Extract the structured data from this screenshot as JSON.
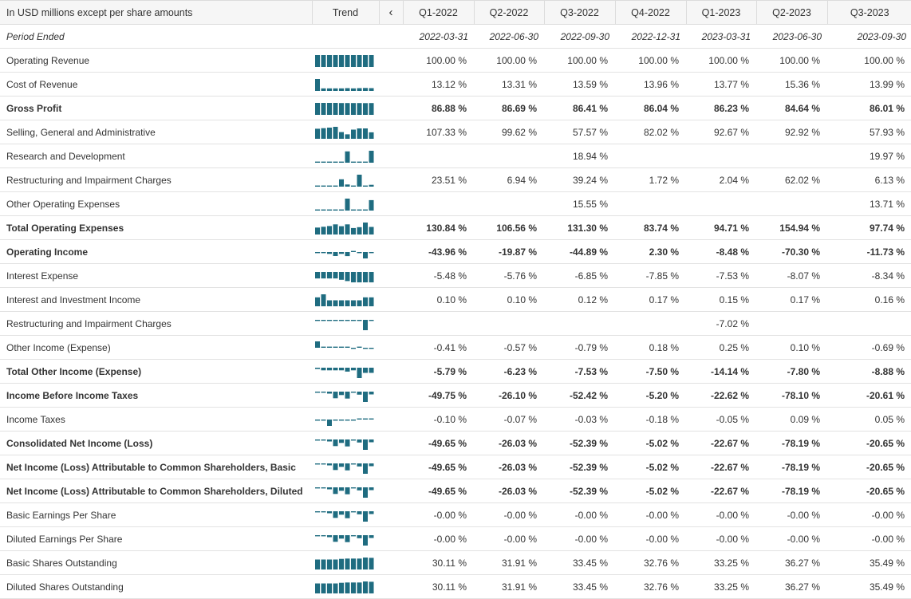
{
  "header": {
    "units_label": "In USD millions except per share amounts",
    "trend_label": "Trend",
    "nav_prev_label": "‹",
    "periods": [
      "Q1-2022",
      "Q2-2022",
      "Q3-2022",
      "Q4-2022",
      "Q1-2023",
      "Q2-2023",
      "Q3-2023"
    ]
  },
  "period_ended": {
    "label": "Period Ended",
    "dates": [
      "2022-03-31",
      "2022-06-30",
      "2022-09-30",
      "2022-12-31",
      "2023-03-31",
      "2023-06-30",
      "2023-09-30"
    ]
  },
  "colors": {
    "sparkline": "#1f6c80",
    "header_bg": "#f6f6f6",
    "row_border": "#e2e2e2"
  },
  "rows": [
    {
      "label": "Operating Revenue",
      "bold": false,
      "values": [
        "100.00 %",
        "100.00 %",
        "100.00 %",
        "100.00 %",
        "100.00 %",
        "100.00 %",
        "100.00 %"
      ],
      "trend": [
        100,
        100,
        100,
        100,
        100,
        100,
        100,
        100,
        100,
        100
      ]
    },
    {
      "label": "Cost of Revenue",
      "bold": false,
      "values": [
        "13.12 %",
        "13.31 %",
        "13.59 %",
        "13.96 %",
        "13.77 %",
        "15.36 %",
        "13.99 %"
      ],
      "trend": [
        60,
        13,
        13,
        13,
        13,
        14,
        13,
        14,
        15,
        14
      ]
    },
    {
      "label": "Gross Profit",
      "bold": true,
      "values": [
        "86.88 %",
        "86.69 %",
        "86.41 %",
        "86.04 %",
        "86.23 %",
        "84.64 %",
        "86.01 %"
      ],
      "trend": [
        87,
        87,
        87,
        87,
        86,
        86,
        86,
        86,
        85,
        86
      ]
    },
    {
      "label": "Selling, General and Administrative",
      "bold": false,
      "values": [
        "107.33 %",
        "99.62 %",
        "57.57 %",
        "82.02 %",
        "92.67 %",
        "92.92 %",
        "57.93 %"
      ],
      "trend": [
        90,
        95,
        100,
        107,
        60,
        40,
        82,
        93,
        93,
        58
      ]
    },
    {
      "label": "Research and Development",
      "bold": false,
      "values": [
        "",
        "",
        "18.94 %",
        "",
        "",
        "",
        "19.97 %"
      ],
      "trend": [
        0,
        0,
        0,
        0,
        0,
        19,
        0,
        0,
        0,
        20
      ]
    },
    {
      "label": "Restructuring and Impairment Charges",
      "bold": false,
      "values": [
        "23.51 %",
        "6.94 %",
        "39.24 %",
        "1.72 %",
        "2.04 %",
        "62.02 %",
        "6.13 %"
      ],
      "trend": [
        0,
        0,
        0,
        0,
        24,
        7,
        0,
        39,
        2,
        6
      ]
    },
    {
      "label": "Other Operating Expenses",
      "bold": false,
      "values": [
        "",
        "",
        "15.55 %",
        "",
        "",
        "",
        "13.71 %"
      ],
      "trend": [
        0,
        0,
        0,
        0,
        0,
        16,
        0,
        0,
        0,
        14
      ]
    },
    {
      "label": "Total Operating Expenses",
      "bold": true,
      "values": [
        "130.84 %",
        "106.56 %",
        "131.30 %",
        "83.74 %",
        "94.71 %",
        "154.94 %",
        "97.74 %"
      ],
      "trend": [
        90,
        100,
        110,
        131,
        107,
        131,
        84,
        95,
        155,
        98
      ]
    },
    {
      "label": "Operating Income",
      "bold": true,
      "values": [
        "-43.96 %",
        "-19.87 %",
        "-44.89 %",
        "2.30 %",
        "-8.48 %",
        "-70.30 %",
        "-11.73 %"
      ],
      "trend": [
        -3,
        -10,
        -20,
        -44,
        -20,
        -45,
        2,
        -8,
        -70,
        -12
      ]
    },
    {
      "label": "Interest Expense",
      "bold": false,
      "values": [
        "-5.48 %",
        "-5.76 %",
        "-6.85 %",
        "-7.85 %",
        "-7.53 %",
        "-8.07 %",
        "-8.34 %"
      ],
      "trend": [
        -5,
        -5,
        -5,
        -5,
        -6,
        -7,
        -8,
        -8,
        -8,
        -8
      ]
    },
    {
      "label": "Interest and Investment Income",
      "bold": false,
      "values": [
        "0.10 %",
        "0.10 %",
        "0.12 %",
        "0.17 %",
        "0.15 %",
        "0.17 %",
        "0.16 %"
      ],
      "trend": [
        0.3,
        0.4,
        0.2,
        0.2,
        0.2,
        0.2,
        0.2,
        0.2,
        0.3,
        0.3
      ]
    },
    {
      "label": "Restructuring and Impairment Charges",
      "bold": false,
      "values": [
        "",
        "",
        "",
        "",
        "-7.02 %",
        "",
        ""
      ],
      "trend": [
        0,
        0,
        0,
        0,
        0,
        0,
        0,
        0,
        -7,
        0
      ]
    },
    {
      "label": "Other Income (Expense)",
      "bold": false,
      "values": [
        "-0.41 %",
        "-0.57 %",
        "-0.79 %",
        "0.18 %",
        "0.25 %",
        "0.10 %",
        "-0.69 %"
      ],
      "trend": [
        3,
        0.1,
        0.1,
        0.1,
        0.1,
        0.1,
        -0.2,
        0.1,
        -0.2,
        -0.2
      ]
    },
    {
      "label": "Total Other Income (Expense)",
      "bold": true,
      "values": [
        "-5.79 %",
        "-6.23 %",
        "-7.53 %",
        "-7.50 %",
        "-14.14 %",
        "-7.80 %",
        "-8.88 %"
      ],
      "trend": [
        -1,
        -2,
        -2,
        -2,
        -2,
        -3,
        -2,
        -8,
        -4,
        -4
      ]
    },
    {
      "label": "Income Before Income Taxes",
      "bold": true,
      "values": [
        "-49.75 %",
        "-26.10 %",
        "-52.42 %",
        "-5.20 %",
        "-22.62 %",
        "-78.10 %",
        "-20.61 %"
      ],
      "trend": [
        -5,
        -8,
        -15,
        -50,
        -26,
        -52,
        -5,
        -23,
        -78,
        -21
      ]
    },
    {
      "label": "Income Taxes",
      "bold": false,
      "values": [
        "-0.10 %",
        "-0.07 %",
        "-0.03 %",
        "-0.18 %",
        "-0.05 %",
        "0.09 %",
        "0.05 %"
      ],
      "trend": [
        -0.02,
        -0.05,
        -0.3,
        -0.02,
        -0.02,
        -0.02,
        -0.05,
        0.02,
        0.02,
        0.02
      ]
    },
    {
      "label": "Consolidated Net Income (Loss)",
      "bold": true,
      "values": [
        "-49.65 %",
        "-26.03 %",
        "-52.39 %",
        "-5.02 %",
        "-22.67 %",
        "-78.19 %",
        "-20.65 %"
      ],
      "trend": [
        -5,
        -8,
        -15,
        -50,
        -26,
        -52,
        -5,
        -23,
        -78,
        -21
      ]
    },
    {
      "label": "Net Income (Loss) Attributable to Common Shareholders, Basic",
      "bold": true,
      "values": [
        "-49.65 %",
        "-26.03 %",
        "-52.39 %",
        "-5.02 %",
        "-22.67 %",
        "-78.19 %",
        "-20.65 %"
      ],
      "trend": [
        -5,
        -8,
        -15,
        -50,
        -26,
        -52,
        -5,
        -23,
        -78,
        -21
      ]
    },
    {
      "label": "Net Income (Loss) Attributable to Common Shareholders, Diluted",
      "bold": true,
      "values": [
        "-49.65 %",
        "-26.03 %",
        "-52.39 %",
        "-5.02 %",
        "-22.67 %",
        "-78.19 %",
        "-20.65 %"
      ],
      "trend": [
        -5,
        -8,
        -15,
        -50,
        -26,
        -52,
        -5,
        -23,
        -78,
        -21
      ]
    },
    {
      "label": "Basic Earnings Per Share",
      "bold": false,
      "values": [
        "-0.00 %",
        "-0.00 %",
        "-0.00 %",
        "-0.00 %",
        "-0.00 %",
        "-0.00 %",
        "-0.00 %"
      ],
      "trend": [
        -5,
        -8,
        -15,
        -50,
        -26,
        -52,
        -5,
        -23,
        -78,
        -21
      ]
    },
    {
      "label": "Diluted Earnings Per Share",
      "bold": false,
      "values": [
        "-0.00 %",
        "-0.00 %",
        "-0.00 %",
        "-0.00 %",
        "-0.00 %",
        "-0.00 %",
        "-0.00 %"
      ],
      "trend": [
        -5,
        -8,
        -15,
        -50,
        -26,
        -52,
        -5,
        -23,
        -78,
        -21
      ]
    },
    {
      "label": "Basic Shares Outstanding",
      "bold": false,
      "values": [
        "30.11 %",
        "31.91 %",
        "33.45 %",
        "32.76 %",
        "33.25 %",
        "36.27 %",
        "35.49 %"
      ],
      "trend": [
        30,
        30,
        30,
        30,
        32,
        33,
        33,
        33,
        36,
        35
      ]
    },
    {
      "label": "Diluted Shares Outstanding",
      "bold": false,
      "values": [
        "30.11 %",
        "31.91 %",
        "33.45 %",
        "32.76 %",
        "33.25 %",
        "36.27 %",
        "35.49 %"
      ],
      "trend": [
        30,
        30,
        30,
        30,
        32,
        33,
        33,
        33,
        36,
        35
      ]
    }
  ]
}
